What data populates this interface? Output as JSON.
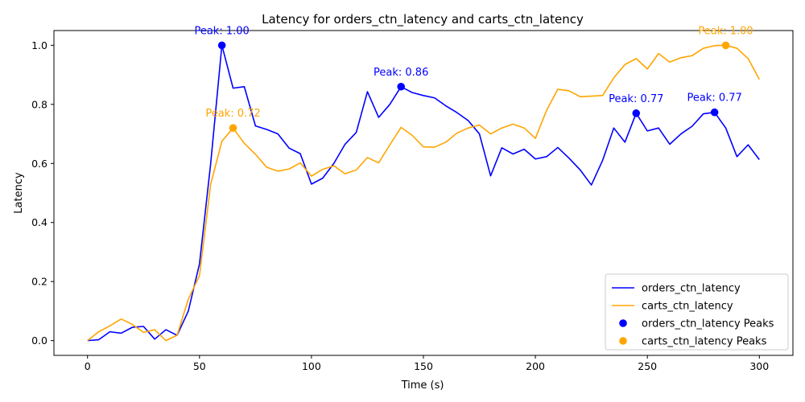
{
  "chart_data": {
    "type": "line",
    "title": "Latency for orders_ctn_latency and carts_ctn_latency",
    "xlabel": "Time (s)",
    "ylabel": "Latency",
    "xlim": [
      -15,
      315
    ],
    "ylim": [
      -0.05,
      1.05
    ],
    "xticks": [
      0,
      50,
      100,
      150,
      200,
      250,
      300
    ],
    "yticks": [
      0.0,
      0.2,
      0.4,
      0.6,
      0.8,
      1.0
    ],
    "grid": false,
    "legend_position": "lower right",
    "x": [
      0,
      5,
      10,
      15,
      20,
      25,
      30,
      35,
      40,
      45,
      50,
      55,
      60,
      65,
      70,
      75,
      80,
      85,
      90,
      95,
      100,
      105,
      110,
      115,
      120,
      125,
      130,
      135,
      140,
      145,
      150,
      155,
      160,
      165,
      170,
      175,
      180,
      185,
      190,
      195,
      200,
      205,
      210,
      215,
      220,
      225,
      230,
      235,
      240,
      245,
      250,
      255,
      260,
      265,
      270,
      275,
      280,
      285,
      290,
      295,
      300
    ],
    "series": [
      {
        "name": "orders_ctn_latency",
        "color": "#0000ff",
        "values": [
          0.0,
          0.003,
          0.03,
          0.025,
          0.045,
          0.048,
          0.005,
          0.037,
          0.018,
          0.1,
          0.26,
          0.6,
          1.0,
          0.855,
          0.86,
          0.727,
          0.715,
          0.7,
          0.652,
          0.633,
          0.53,
          0.55,
          0.6,
          0.665,
          0.705,
          0.843,
          0.756,
          0.8,
          0.86,
          0.84,
          0.83,
          0.822,
          0.795,
          0.772,
          0.745,
          0.7,
          0.558,
          0.653,
          0.632,
          0.648,
          0.615,
          0.623,
          0.654,
          0.618,
          0.578,
          0.527,
          0.61,
          0.72,
          0.672,
          0.77,
          0.71,
          0.72,
          0.665,
          0.7,
          0.726,
          0.768,
          0.773,
          0.72,
          0.623,
          0.663,
          0.613
        ]
      },
      {
        "name": "carts_ctn_latency",
        "color": "#ffa500",
        "values": [
          0.0,
          0.03,
          0.05,
          0.073,
          0.055,
          0.028,
          0.037,
          0.0,
          0.018,
          0.14,
          0.22,
          0.53,
          0.675,
          0.72,
          0.668,
          0.631,
          0.587,
          0.574,
          0.581,
          0.602,
          0.557,
          0.58,
          0.592,
          0.565,
          0.578,
          0.62,
          0.602,
          0.663,
          0.722,
          0.695,
          0.656,
          0.655,
          0.672,
          0.703,
          0.72,
          0.73,
          0.7,
          0.72,
          0.733,
          0.72,
          0.685,
          0.78,
          0.851,
          0.846,
          0.826,
          0.828,
          0.83,
          0.89,
          0.935,
          0.955,
          0.92,
          0.972,
          0.943,
          0.958,
          0.965,
          0.99,
          0.999,
          1.0,
          0.99,
          0.955,
          0.885
        ]
      }
    ],
    "peaks": [
      {
        "series": "orders_ctn_latency",
        "color": "#0000ff",
        "points": [
          {
            "x": 60,
            "y": 1.0,
            "label": "Peak: 1.00"
          },
          {
            "x": 140,
            "y": 0.86,
            "label": "Peak: 0.86"
          },
          {
            "x": 245,
            "y": 0.77,
            "label": "Peak: 0.77"
          },
          {
            "x": 280,
            "y": 0.773,
            "label": "Peak: 0.77"
          }
        ]
      },
      {
        "series": "carts_ctn_latency",
        "color": "#ffa500",
        "points": [
          {
            "x": 65,
            "y": 0.72,
            "label": "Peak: 0.72"
          },
          {
            "x": 285,
            "y": 1.0,
            "label": "Peak: 1.00"
          }
        ]
      }
    ],
    "legend": [
      {
        "label": "orders_ctn_latency",
        "kind": "line",
        "color": "#0000ff"
      },
      {
        "label": "carts_ctn_latency",
        "kind": "line",
        "color": "#ffa500"
      },
      {
        "label": "orders_ctn_latency Peaks",
        "kind": "marker",
        "color": "#0000ff"
      },
      {
        "label": "carts_ctn_latency Peaks",
        "kind": "marker",
        "color": "#ffa500"
      }
    ]
  }
}
